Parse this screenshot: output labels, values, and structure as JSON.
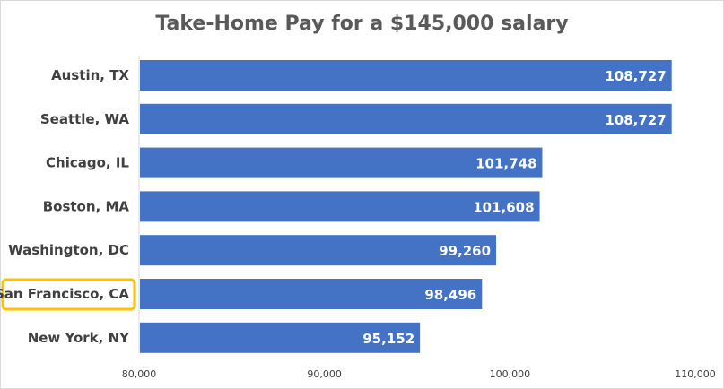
{
  "chart_data": {
    "type": "bar",
    "orientation": "horizontal",
    "title": "Take-Home Pay for a $145,000 salary",
    "categories": [
      "Austin, TX",
      "Seattle, WA",
      "Chicago, IL",
      "Boston, MA",
      "Washington, DC",
      "San Francisco, CA",
      "New York, NY"
    ],
    "values": [
      108727,
      108727,
      101748,
      101608,
      99260,
      98496,
      95152
    ],
    "value_labels": [
      "108,727",
      "108,727",
      "101,748",
      "101,608",
      "99,260",
      "98,496",
      "95,152"
    ],
    "xlim": [
      80000,
      110000
    ],
    "x_ticks": [
      80000,
      90000,
      100000,
      110000
    ],
    "x_tick_labels": [
      "80,000",
      "90,000",
      "100,000",
      "110,000"
    ],
    "highlighted_category": "San Francisco, CA",
    "grid": false,
    "colors": {
      "bar": "#4472c4",
      "highlight_border": "#ffc000",
      "title": "#595959",
      "label": "#404040"
    }
  }
}
